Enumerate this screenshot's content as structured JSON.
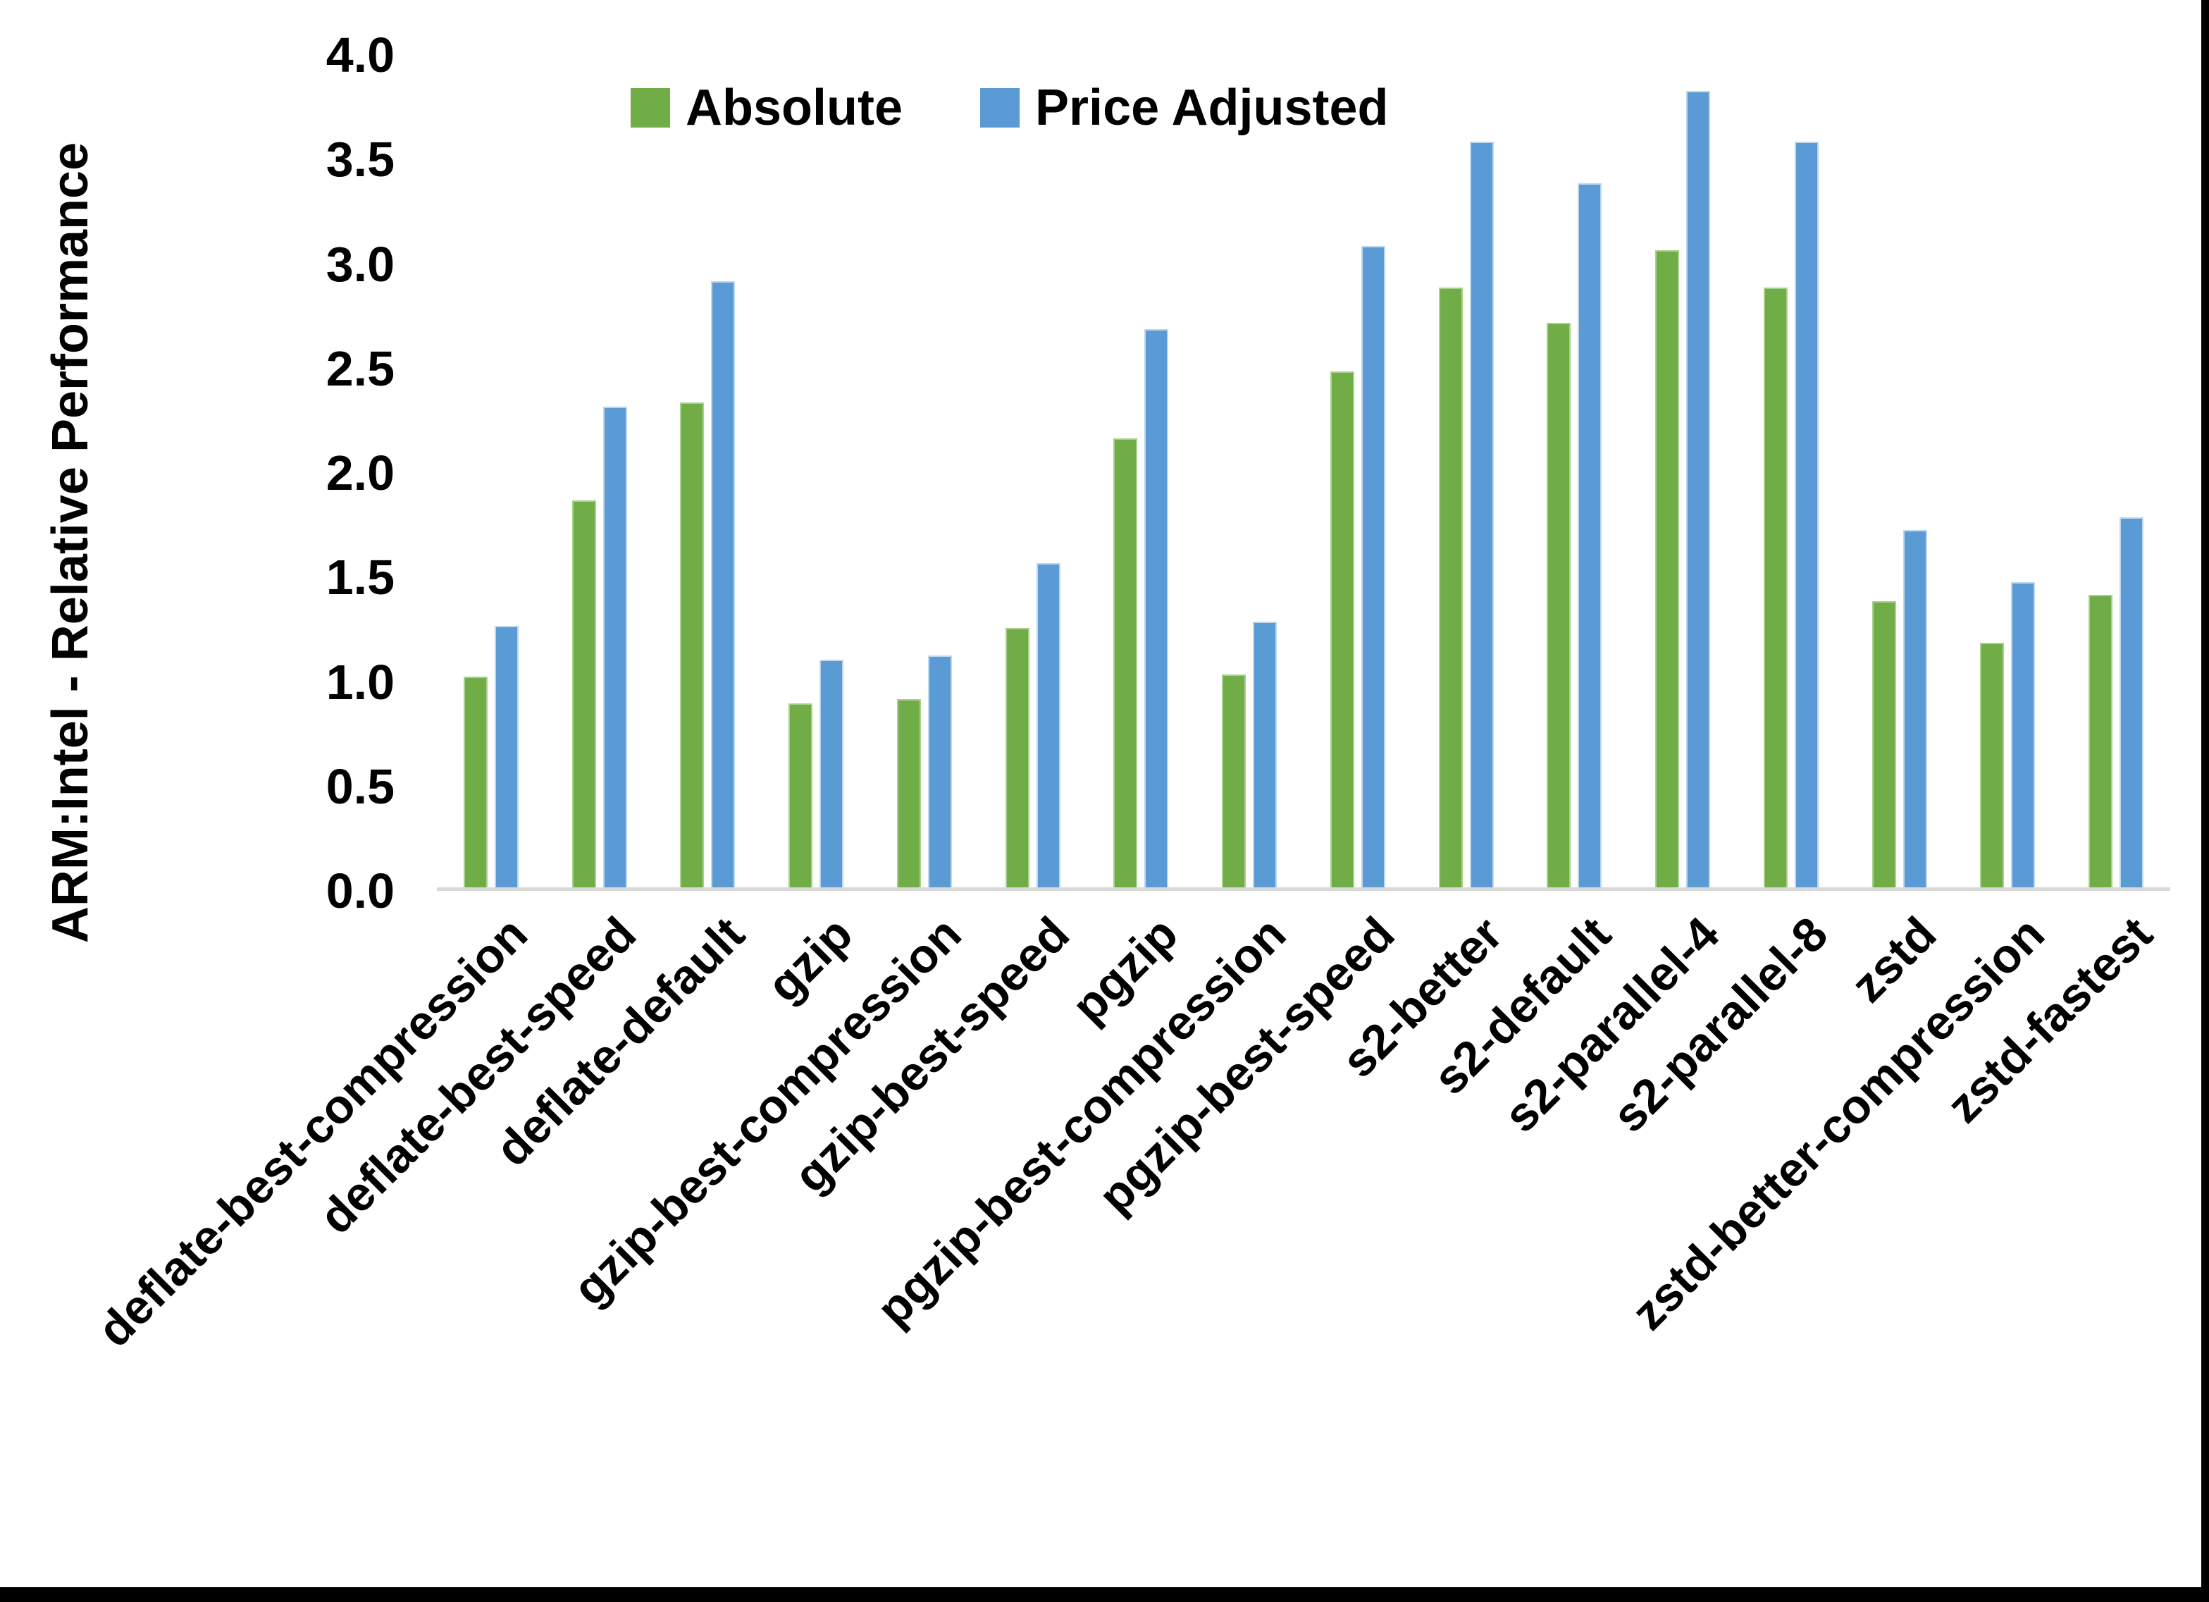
{
  "page": {
    "background": "#ffffff",
    "edge_border_color": "#000000"
  },
  "chart_data": {
    "type": "bar",
    "title": "",
    "y_axis_title": "ARM:Intel - Relative Performance",
    "xlabel": "",
    "ylabel": "ARM:Intel - Relative Performance",
    "ylim": [
      0.0,
      4.0
    ],
    "y_tick_step": 0.5,
    "y_tick_labels": [
      "0.0",
      "0.5",
      "1.0",
      "1.5",
      "2.0",
      "2.5",
      "3.0",
      "3.5",
      "4.0"
    ],
    "grid": false,
    "legend_position": "top-center",
    "axis_line_color": "#d9d9d9",
    "text_color": "#000000",
    "categories": [
      "deflate-best-compression",
      "deflate-best-speed",
      "deflate-default",
      "gzip",
      "gzip-best-compression",
      "gzip-best-speed",
      "pgzip",
      "pgzip-best-compression",
      "pgzip-best-speed",
      "s2-better",
      "s2-default",
      "s2-parallel-4",
      "s2-parallel-8",
      "zstd",
      "zstd-better-compression",
      "zstd-fastest"
    ],
    "series": [
      {
        "name": "Absolute",
        "color": "#70AD47",
        "edge_color": "#A9D18E",
        "values": [
          1.01,
          1.85,
          2.32,
          0.88,
          0.9,
          1.24,
          2.15,
          1.02,
          2.47,
          2.87,
          2.7,
          3.05,
          2.87,
          1.37,
          1.17,
          1.4
        ]
      },
      {
        "name": "Price Adjusted",
        "color": "#5B9BD5",
        "edge_color": "#BDD7EE",
        "values": [
          1.25,
          2.3,
          2.9,
          1.09,
          1.11,
          1.55,
          2.67,
          1.27,
          3.07,
          3.57,
          3.37,
          3.81,
          3.57,
          1.71,
          1.46,
          1.77
        ]
      }
    ]
  }
}
